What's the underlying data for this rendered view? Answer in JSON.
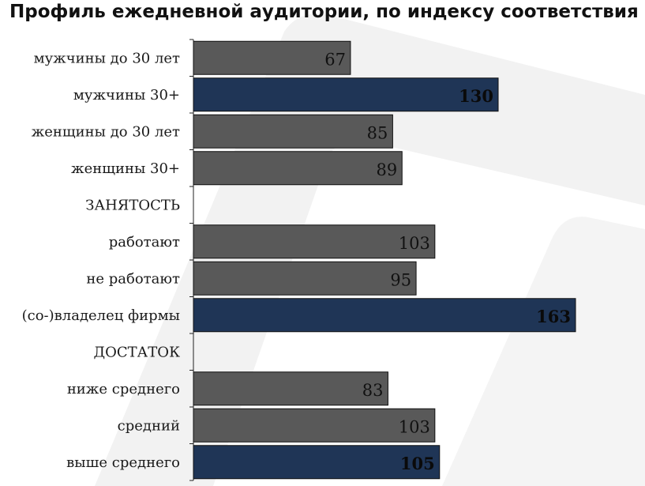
{
  "chart_data": {
    "type": "bar",
    "orientation": "horizontal",
    "title": "Профиль ежедневной аудитории, по индексу соответствия",
    "categories": [
      "мужчины до 30 лет",
      "мужчины 30+",
      "женщины до 30 лет",
      "женщины 30+",
      "ЗАНЯТОСТЬ",
      "работают",
      "не работают",
      "(со-)владелец фирмы",
      "ДОСТАТОК",
      "ниже среднего",
      "средний",
      "выше среднего"
    ],
    "values": [
      67,
      130,
      85,
      89,
      null,
      103,
      95,
      163,
      null,
      83,
      103,
      105
    ],
    "highlighted": [
      false,
      true,
      false,
      false,
      false,
      false,
      false,
      true,
      false,
      false,
      false,
      true
    ],
    "colors": {
      "normal": "#595959",
      "highlight": "#1f3556",
      "label_normal": "#111111",
      "label_highlight": "#0a0a0a"
    },
    "xlim": [
      0,
      180
    ],
    "grid": false,
    "legend": "none"
  }
}
